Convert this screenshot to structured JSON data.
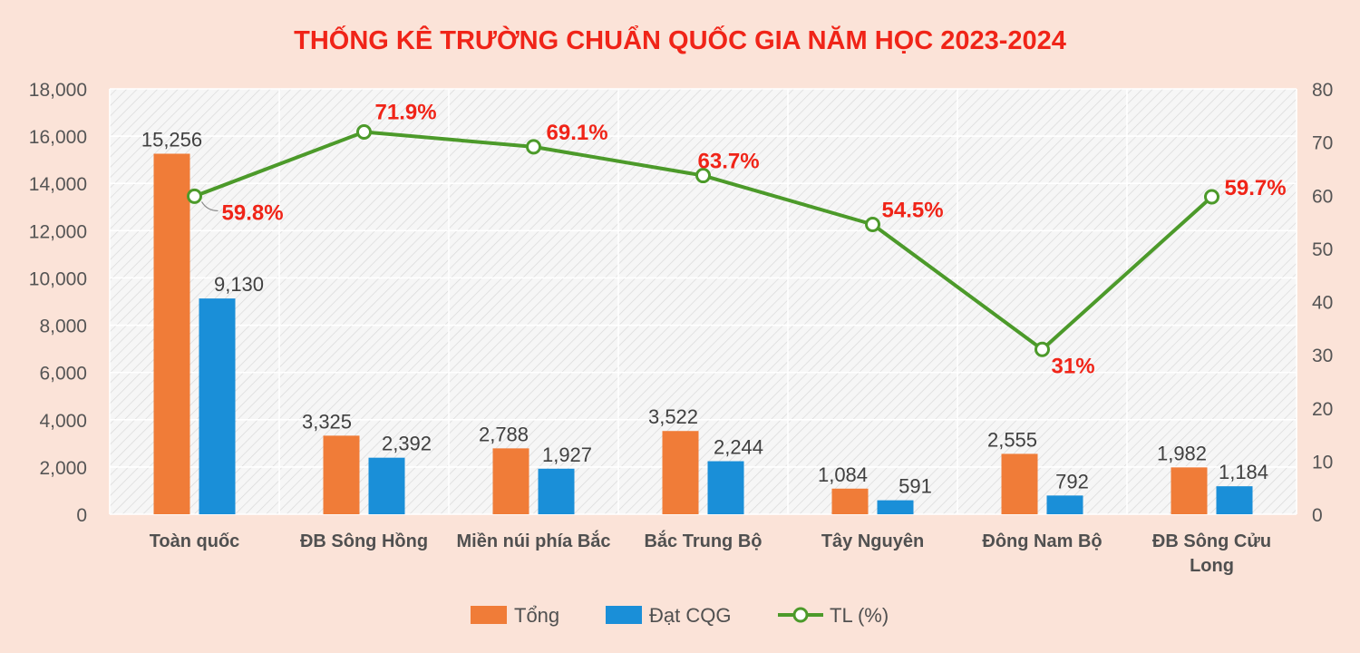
{
  "chart_data": {
    "type": "bar",
    "title": "THỐNG KÊ TRƯỜNG CHUẨN QUỐC GIA NĂM HỌC 2023-2024",
    "categories": [
      [
        "Toàn quốc"
      ],
      [
        "ĐB Sông Hồng"
      ],
      [
        "Miền núi phía Bắc"
      ],
      [
        "Bắc Trung Bộ"
      ],
      [
        "Tây Nguyên"
      ],
      [
        "Đông Nam Bộ"
      ],
      [
        "ĐB Sông Cửu",
        "Long"
      ]
    ],
    "series": [
      {
        "name": "Tổng",
        "type": "bar",
        "axis": "left",
        "color": "#f07c38",
        "values": [
          15256,
          3325,
          2788,
          3522,
          1084,
          2555,
          1982
        ],
        "labels": [
          "15,256",
          "3,325",
          "2,788",
          "3,522",
          "1,084",
          "2,555",
          "1,982"
        ]
      },
      {
        "name": "Đạt CQG",
        "type": "bar",
        "axis": "left",
        "color": "#1a8fd8",
        "values": [
          9130,
          2392,
          1927,
          2244,
          591,
          792,
          1184
        ],
        "labels": [
          "9,130",
          "2,392",
          "1,927",
          "2,244",
          "591",
          "792",
          "1,184"
        ]
      },
      {
        "name": "TL (%)",
        "type": "line",
        "axis": "right",
        "color": "#4c9a2a",
        "values": [
          59.8,
          71.9,
          69.1,
          63.7,
          54.5,
          31,
          59.7
        ],
        "labels": [
          "59.8%",
          "71.9%",
          "69.1%",
          "63.7%",
          "54.5%",
          "31%",
          "59.7%"
        ]
      }
    ],
    "y_left": {
      "ylim": [
        0,
        18000
      ],
      "ticks": [
        0,
        2000,
        4000,
        6000,
        8000,
        10000,
        12000,
        14000,
        16000,
        18000
      ],
      "tick_labels": [
        "0",
        "2,000",
        "4,000",
        "6,000",
        "8,000",
        "10,000",
        "12,000",
        "14,000",
        "16,000",
        "18,000"
      ]
    },
    "y_right": {
      "ylim": [
        0,
        80
      ],
      "ticks": [
        0,
        10,
        20,
        30,
        40,
        50,
        60,
        70,
        80
      ],
      "tick_labels": [
        "0",
        "10",
        "20",
        "30",
        "40",
        "50",
        "60",
        "70",
        "80"
      ]
    },
    "grid": true,
    "legend_position": "bottom",
    "colors": {
      "background": "#fbe3d8",
      "plot_background": "#f4f4f4",
      "title": "#f02418",
      "pct_label": "#f02418"
    }
  }
}
